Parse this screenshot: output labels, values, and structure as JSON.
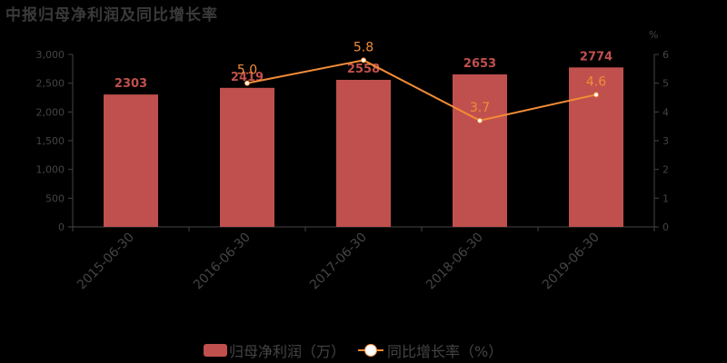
{
  "title": "中报归母净利润及同比增长率",
  "chart_data": {
    "type": "bar+line",
    "title": "中报归母净利润及同比增长率",
    "categories": [
      "2015-06-30",
      "2016-06-30",
      "2017-06-30",
      "2018-06-30",
      "2019-06-30"
    ],
    "series": [
      {
        "name": "归母净利润（万）",
        "type": "bar",
        "axis": "left",
        "color": "#c0504d",
        "values": [
          2303,
          2419,
          2558,
          2653,
          2774
        ]
      },
      {
        "name": "同比增长率（%）",
        "type": "line",
        "axis": "right",
        "color": "#f28c38",
        "values": [
          null,
          5.0,
          5.8,
          3.7,
          4.6
        ]
      }
    ],
    "left_axis": {
      "min": 0,
      "max": 3000,
      "ticks": [
        "0",
        "500",
        "1,000",
        "1,500",
        "2,000",
        "2,500",
        "3,000"
      ]
    },
    "right_axis": {
      "label": "%",
      "min": 0,
      "max": 6,
      "ticks": [
        "0",
        "1",
        "2",
        "3",
        "4",
        "5",
        "6"
      ]
    },
    "grid": false,
    "legend_position": "bottom"
  },
  "bar_labels": [
    "2303",
    "2419",
    "2558",
    "2653",
    "2774"
  ],
  "line_labels": [
    "",
    "5.0",
    "5.8",
    "3.7",
    "4.6"
  ],
  "legend": {
    "bar_label": "归母净利润（万）",
    "line_label": "同比增长率（%）"
  },
  "right_axis_unit": "%"
}
